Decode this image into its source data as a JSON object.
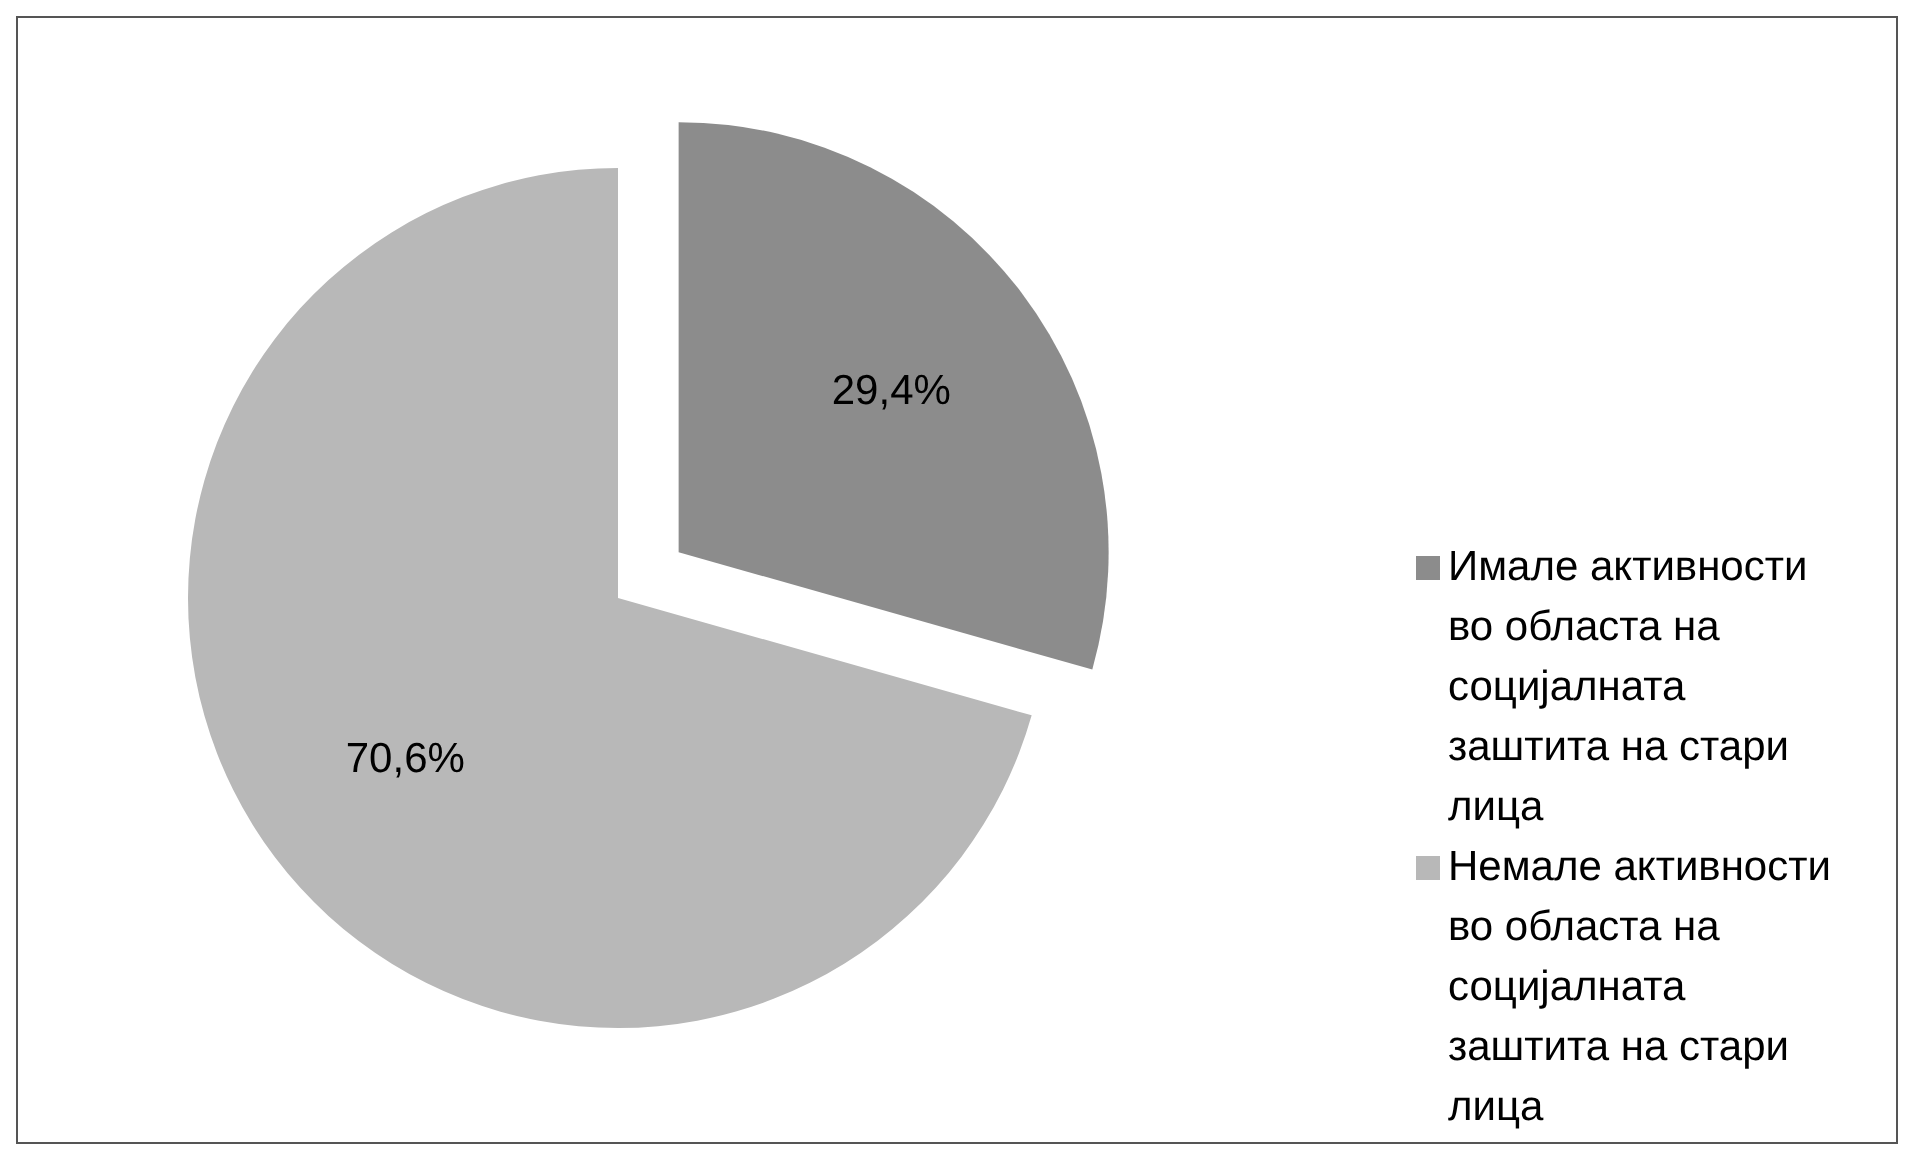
{
  "chart_data": {
    "type": "pie",
    "categories": [
      "Имале активности во областа на социјалната заштита на стари лица",
      "Немале активности во областа на социјалната заштита на стари лица"
    ],
    "values": [
      29.4,
      70.6
    ],
    "colors": [
      "#8c8c8c",
      "#b8b8b8"
    ],
    "value_labels": [
      "29,4%",
      "70,6%"
    ],
    "legend": "right"
  }
}
